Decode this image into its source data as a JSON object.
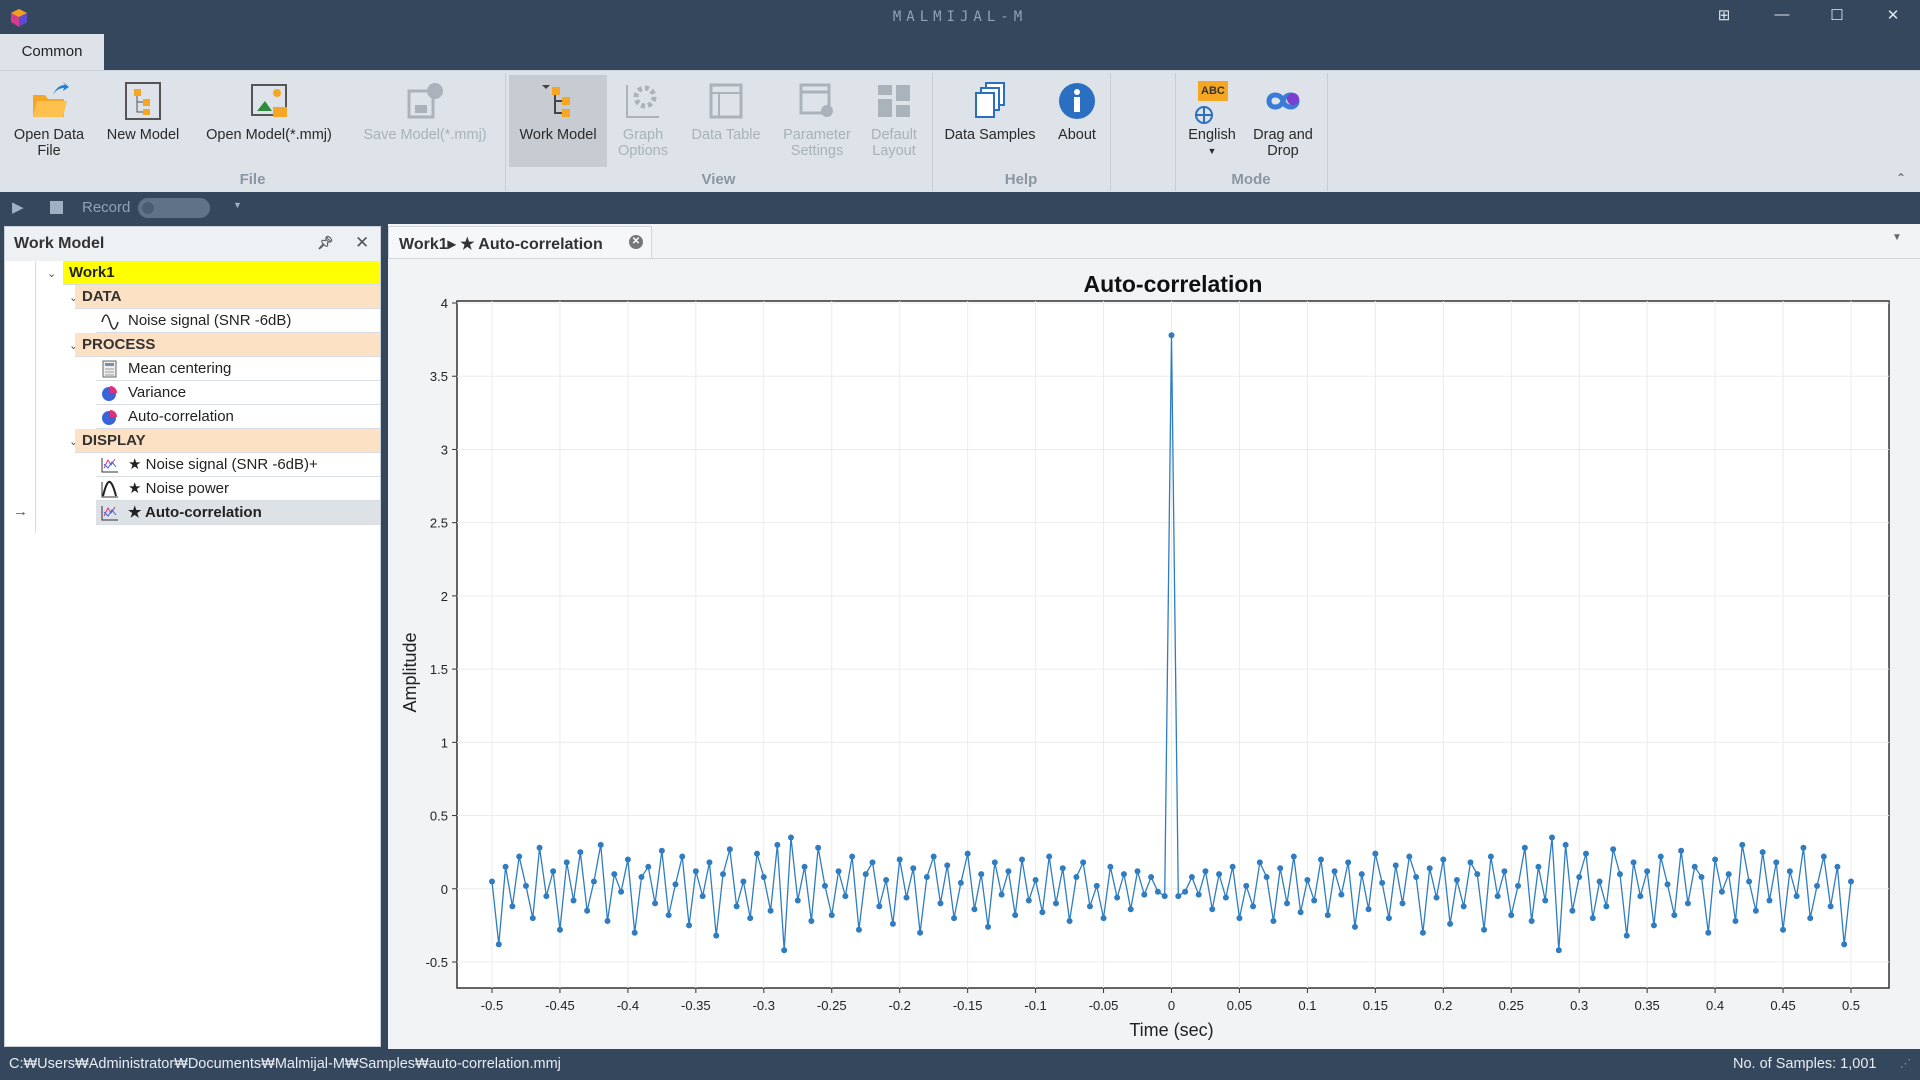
{
  "app": {
    "title": "MALMIJAL-M",
    "window_controls": [
      "restore-layout",
      "minimize",
      "maximize",
      "close"
    ]
  },
  "ribbon": {
    "tab": "Common",
    "buttons": [
      {
        "label": "Open Data File",
        "icon": "open-folder-icon",
        "enabled": true
      },
      {
        "label": "New Model",
        "icon": "new-model-icon",
        "enabled": true
      },
      {
        "label": "Open Model(*.mmj)",
        "icon": "open-model-icon",
        "enabled": true
      },
      {
        "label": "Save Model(*.mmj)",
        "icon": "save-model-icon",
        "enabled": false
      },
      {
        "label": "Work Model",
        "icon": "work-model-icon",
        "enabled": true,
        "selected": true
      },
      {
        "label": "Graph Options",
        "icon": "graph-options-icon",
        "enabled": false
      },
      {
        "label": "Data Table",
        "icon": "data-table-icon",
        "enabled": false
      },
      {
        "label": "Parameter Settings",
        "icon": "parameter-settings-icon",
        "enabled": false
      },
      {
        "label": "Default Layout",
        "icon": "default-layout-icon",
        "enabled": false
      },
      {
        "label": "Data Samples",
        "icon": "data-samples-icon",
        "enabled": true
      },
      {
        "label": "About",
        "icon": "info-icon",
        "enabled": true
      },
      {
        "label": "English",
        "icon": "language-icon",
        "enabled": true
      },
      {
        "label": "Drag and Drop",
        "icon": "drag-drop-icon",
        "enabled": true
      }
    ],
    "groups": [
      "File",
      "View",
      "Help",
      "Mode"
    ],
    "language_badge": "ABC"
  },
  "recordbar": {
    "label": "Record",
    "toggle_on": false
  },
  "workmodel": {
    "title": "Work Model",
    "root": "Work1",
    "groups": [
      {
        "label": "DATA",
        "items": [
          {
            "label": "Noise signal (SNR -6dB)",
            "icon": "wave-icon"
          }
        ]
      },
      {
        "label": "PROCESS",
        "items": [
          {
            "label": "Mean centering",
            "icon": "calculator-icon"
          },
          {
            "label": "Variance",
            "icon": "pie-chart-icon"
          },
          {
            "label": "Auto-correlation",
            "icon": "pie-chart-icon"
          }
        ]
      },
      {
        "label": "DISPLAY",
        "items": [
          {
            "label": "★ Noise signal (SNR -6dB)+",
            "icon": "line-chart-icon"
          },
          {
            "label": "★ Noise power",
            "icon": "bell-curve-icon"
          },
          {
            "label": "★ Auto-correlation",
            "icon": "line-chart-icon",
            "selected": true
          }
        ]
      }
    ]
  },
  "document": {
    "tab_label": "Work1▸ ★ Auto-correlation"
  },
  "status": {
    "path": "C:₩Users₩Administrator₩Documents₩Malmijal-M₩Samples₩auto-correlation.mmj",
    "samples": "No. of Samples: 1,001"
  },
  "chart_data": {
    "type": "line",
    "title": "Auto-correlation",
    "xlabel": "Time (sec)",
    "ylabel": "Amplitude",
    "xlim": [
      -0.5,
      0.5
    ],
    "ylim": [
      -0.5,
      4
    ],
    "xticks": [
      "-0.5",
      "-0.45",
      "-0.4",
      "-0.35",
      "-0.3",
      "-0.25",
      "-0.2",
      "-0.15",
      "-0.1",
      "-0.05",
      "0",
      "0.05",
      "0.1",
      "0.15",
      "0.2",
      "0.25",
      "0.3",
      "0.35",
      "0.4",
      "0.45",
      "0.5"
    ],
    "yticks": [
      "-0.5",
      "0",
      "0.5",
      "1",
      "1.5",
      "2",
      "2.5",
      "3",
      "3.5",
      "4"
    ],
    "grid": true,
    "markers": true,
    "color": "#2f7dc0",
    "x_start": -0.5,
    "x_step": 0.005,
    "values": [
      0.05,
      -0.38,
      0.15,
      -0.12,
      0.22,
      0.02,
      -0.2,
      0.28,
      -0.05,
      0.12,
      -0.28,
      0.18,
      -0.08,
      0.25,
      -0.15,
      0.05,
      0.3,
      -0.22,
      0.1,
      -0.02,
      0.2,
      -0.3,
      0.08,
      0.15,
      -0.1,
      0.26,
      -0.18,
      0.03,
      0.22,
      -0.25,
      0.12,
      -0.05,
      0.18,
      -0.32,
      0.1,
      0.27,
      -0.12,
      0.05,
      -0.2,
      0.24,
      0.08,
      -0.15,
      0.3,
      -0.42,
      0.35,
      -0.08,
      0.15,
      -0.22,
      0.28,
      0.02,
      -0.18,
      0.12,
      -0.05,
      0.22,
      -0.28,
      0.1,
      0.18,
      -0.12,
      0.06,
      -0.24,
      0.2,
      -0.06,
      0.14,
      -0.3,
      0.08,
      0.22,
      -0.1,
      0.16,
      -0.2,
      0.04,
      0.24,
      -0.14,
      0.1,
      -0.26,
      0.18,
      -0.04,
      0.12,
      -0.18,
      0.2,
      -0.08,
      0.06,
      -0.16,
      0.22,
      -0.1,
      0.14,
      -0.22,
      0.08,
      0.18,
      -0.12,
      0.02,
      -0.2,
      0.15,
      -0.06,
      0.1,
      -0.14,
      0.12,
      -0.04,
      0.08,
      -0.02,
      -0.05,
      3.78,
      -0.05,
      -0.02,
      0.08,
      -0.04,
      0.12,
      -0.14,
      0.1,
      -0.06,
      0.15,
      -0.2,
      0.02,
      -0.12,
      0.18,
      0.08,
      -0.22,
      0.14,
      -0.1,
      0.22,
      -0.16,
      0.06,
      -0.08,
      0.2,
      -0.18,
      0.12,
      -0.04,
      0.18,
      -0.26,
      0.1,
      -0.14,
      0.24,
      0.04,
      -0.2,
      0.16,
      -0.1,
      0.22,
      0.08,
      -0.3,
      0.14,
      -0.06,
      0.2,
      -0.24,
      0.06,
      -0.12,
      0.18,
      0.1,
      -0.28,
      0.22,
      -0.05,
      0.12,
      -0.18,
      0.02,
      0.28,
      -0.22,
      0.15,
      -0.08,
      0.35,
      -0.42,
      0.3,
      -0.15,
      0.08,
      0.24,
      -0.2,
      0.05,
      -0.12,
      0.27,
      0.1,
      -0.32,
      0.18,
      -0.05,
      0.12,
      -0.25,
      0.22,
      0.03,
      -0.18,
      0.26,
      -0.1,
      0.15,
      0.08,
      -0.3,
      0.2,
      -0.02,
      0.1,
      -0.22,
      0.3,
      0.05,
      -0.15,
      0.25,
      -0.08,
      0.18,
      -0.28,
      0.12,
      -0.05,
      0.28,
      -0.2,
      0.02,
      0.22,
      -0.12,
      0.15,
      -0.38,
      0.05
    ]
  }
}
